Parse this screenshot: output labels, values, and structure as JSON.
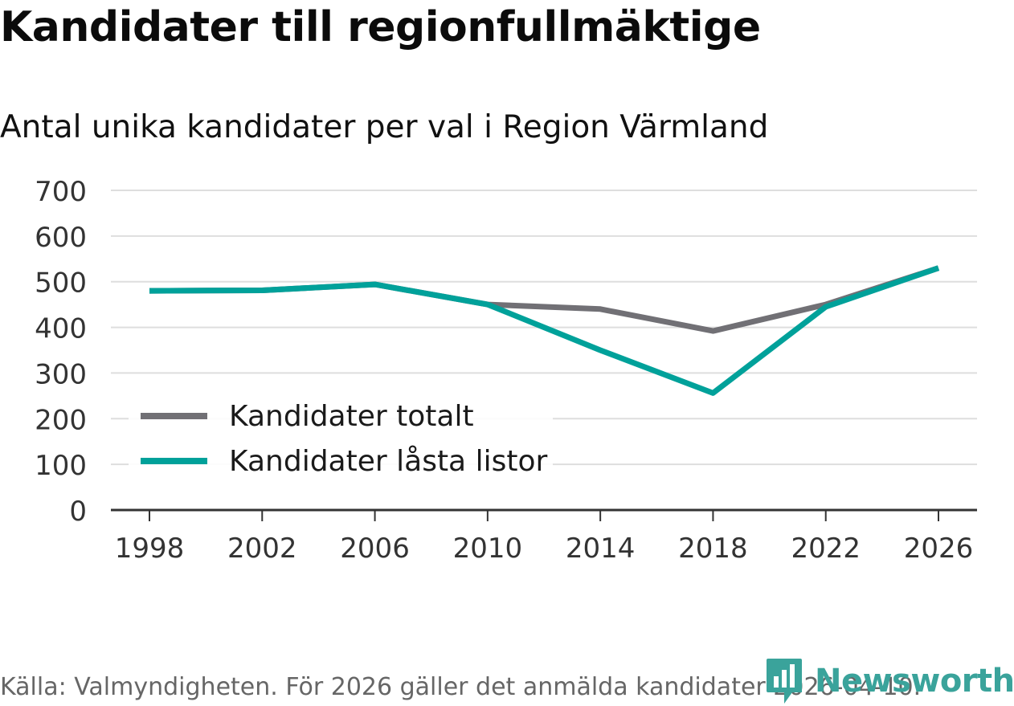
{
  "header": {
    "title": "Kandidater till regionfullmäktige",
    "subtitle": "Antal unika kandidater per val i Region Värmland"
  },
  "footer": {
    "source": "Källa: Valmyndigheten. För 2026 gäller det anmälda kandidater 2026-04-10.",
    "brand": "Newsworthy"
  },
  "colors": {
    "totalt": "#717075",
    "lasta": "#00a19a",
    "brand": "#3aa39b"
  },
  "chart_data": {
    "type": "line",
    "title": "Kandidater till regionfullmäktige",
    "subtitle": "Antal unika kandidater per val i Region Värmland",
    "xlabel": "",
    "ylabel": "",
    "x": [
      1998,
      2002,
      2006,
      2010,
      2014,
      2018,
      2022,
      2026
    ],
    "x_tick_labels": [
      "1998",
      "2002",
      "2006",
      "2010",
      "2014",
      "2018",
      "2022",
      "2026"
    ],
    "y_ticks": [
      0,
      100,
      200,
      300,
      400,
      500,
      600,
      700
    ],
    "y_tick_labels": [
      "0",
      "100",
      "200",
      "300",
      "400",
      "500",
      "600",
      "700"
    ],
    "ylim": [
      0,
      700
    ],
    "grid": true,
    "legend_position": "lower-left",
    "series": [
      {
        "name": "Kandidater totalt",
        "color": "#717075",
        "values": [
          480,
          481,
          494,
          450,
          440,
          392,
          450,
          530
        ]
      },
      {
        "name": "Kandidater låsta listor",
        "color": "#00a19a",
        "values": [
          480,
          481,
          494,
          450,
          350,
          256,
          445,
          530
        ]
      }
    ]
  }
}
